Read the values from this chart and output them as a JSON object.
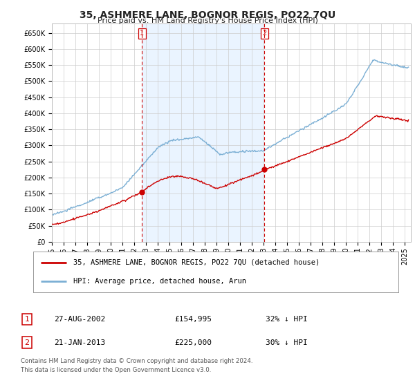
{
  "title": "35, ASHMERE LANE, BOGNOR REGIS, PO22 7QU",
  "subtitle": "Price paid vs. HM Land Registry's House Price Index (HPI)",
  "ylim": [
    0,
    680000
  ],
  "xlim_start": 1995.0,
  "xlim_end": 2025.5,
  "hpi_color": "#7bafd4",
  "price_color": "#cc0000",
  "shade_color": "#ddeeff",
  "marker1_x": 2002.65,
  "marker1_y": 154995,
  "marker2_x": 2013.05,
  "marker2_y": 225000,
  "legend_label1": "35, ASHMERE LANE, BOGNOR REGIS, PO22 7QU (detached house)",
  "legend_label2": "HPI: Average price, detached house, Arun",
  "table_row1_date": "27-AUG-2002",
  "table_row1_price": "£154,995",
  "table_row1_pct": "32% ↓ HPI",
  "table_row2_date": "21-JAN-2013",
  "table_row2_price": "£225,000",
  "table_row2_pct": "30% ↓ HPI",
  "footnote1": "Contains HM Land Registry data © Crown copyright and database right 2024.",
  "footnote2": "This data is licensed under the Open Government Licence v3.0.",
  "background_color": "#ffffff",
  "grid_color": "#cccccc"
}
